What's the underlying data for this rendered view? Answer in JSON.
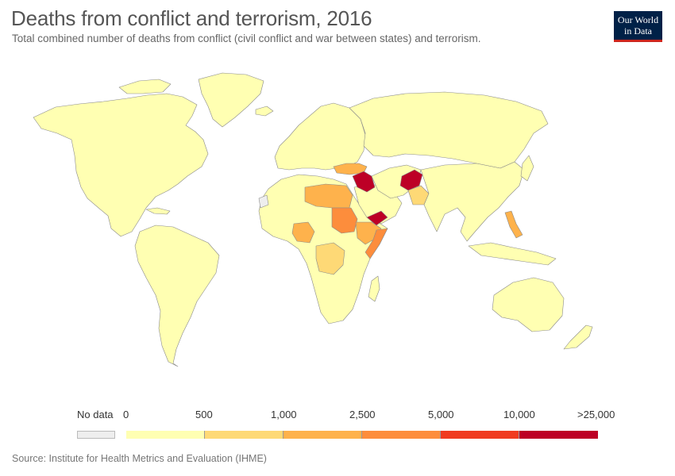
{
  "title": "Deaths from conflict and terrorism, 2016",
  "subtitle": "Total combined number of deaths from conflict (civil conflict and war between states) and terrorism.",
  "logo": {
    "line1": "Our World",
    "line2": "in Data"
  },
  "legend": {
    "no_data_label": "No data",
    "no_data_color": "#eeeeee",
    "ticks": [
      "0",
      "500",
      "1,000",
      "2,500",
      "5,000",
      "10,000",
      ">25,000"
    ],
    "colors": [
      "#ffffb2",
      "#fed976",
      "#feb24c",
      "#fd8d3c",
      "#f03b20",
      "#bd0026"
    ]
  },
  "source": "Source: Institute for Health Metrics and Evaluation (IHME)",
  "colors": {
    "land_default": "#ffffb2",
    "border": "#8a8a8a"
  }
}
